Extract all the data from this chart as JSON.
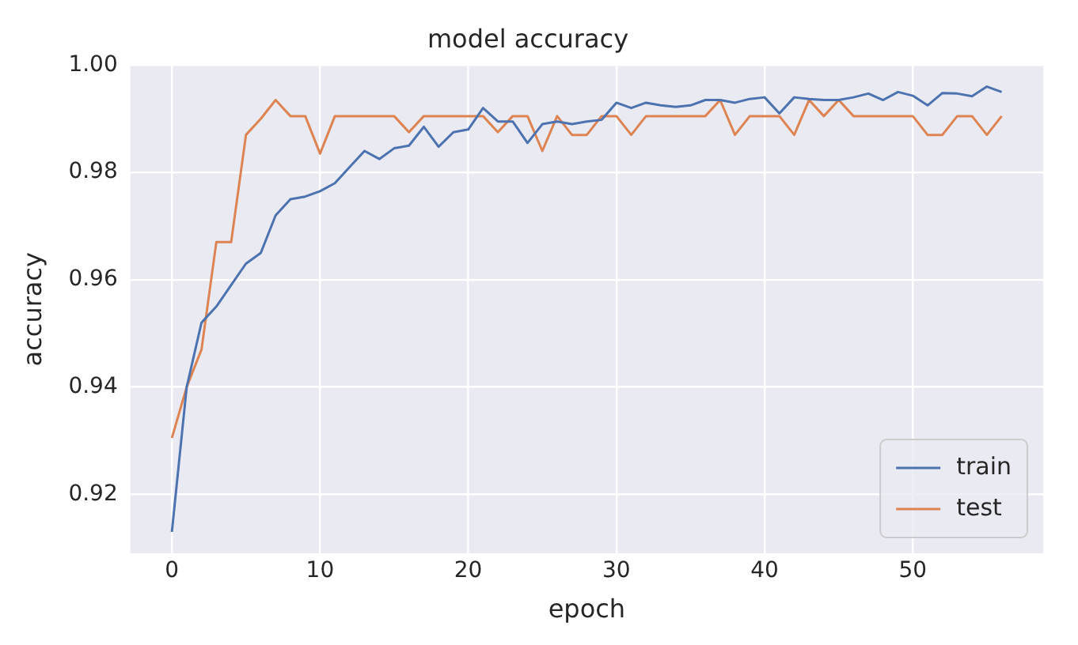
{
  "chart_data": {
    "type": "line",
    "title": "model accuracy",
    "xlabel": "epoch",
    "ylabel": "accuracy",
    "x": [
      0,
      1,
      2,
      3,
      4,
      5,
      6,
      7,
      8,
      9,
      10,
      11,
      12,
      13,
      14,
      15,
      16,
      17,
      18,
      19,
      20,
      21,
      22,
      23,
      24,
      25,
      26,
      27,
      28,
      29,
      30,
      31,
      32,
      33,
      34,
      35,
      36,
      37,
      38,
      39,
      40,
      41,
      42,
      43,
      44,
      45,
      46,
      47,
      48,
      49,
      50,
      51,
      52,
      53,
      54,
      55,
      56
    ],
    "series": [
      {
        "name": "train",
        "color": "#4c72b0",
        "values": [
          0.913,
          0.94,
          0.952,
          0.955,
          0.959,
          0.963,
          0.965,
          0.972,
          0.975,
          0.9755,
          0.9765,
          0.978,
          0.981,
          0.984,
          0.9825,
          0.9845,
          0.985,
          0.9885,
          0.9848,
          0.9875,
          0.988,
          0.992,
          0.9895,
          0.9895,
          0.9855,
          0.989,
          0.9895,
          0.989,
          0.9895,
          0.9898,
          0.993,
          0.992,
          0.993,
          0.9925,
          0.9922,
          0.9925,
          0.9935,
          0.9935,
          0.993,
          0.9937,
          0.994,
          0.991,
          0.994,
          0.9937,
          0.9935,
          0.9935,
          0.994,
          0.9947,
          0.9935,
          0.995,
          0.9943,
          0.9925,
          0.9948,
          0.9947,
          0.9942,
          0.996,
          0.995
        ]
      },
      {
        "name": "test",
        "color": "#dd8452",
        "values": [
          0.9305,
          0.94,
          0.947,
          0.967,
          0.967,
          0.987,
          0.99,
          0.9935,
          0.9905,
          0.9905,
          0.9835,
          0.9905,
          0.9905,
          0.9905,
          0.9905,
          0.9905,
          0.9875,
          0.9905,
          0.9905,
          0.9905,
          0.9905,
          0.9905,
          0.9875,
          0.9905,
          0.9905,
          0.984,
          0.9905,
          0.987,
          0.987,
          0.9905,
          0.9905,
          0.987,
          0.9905,
          0.9905,
          0.9905,
          0.9905,
          0.9905,
          0.9935,
          0.987,
          0.9905,
          0.9905,
          0.9905,
          0.987,
          0.9935,
          0.9905,
          0.9935,
          0.9905,
          0.9905,
          0.9905,
          0.9905,
          0.9905,
          0.987,
          0.987,
          0.9905,
          0.9905,
          0.987,
          0.9905
        ]
      }
    ],
    "xlim": [
      -2.8,
      58.8
    ],
    "xticks": [
      0,
      10,
      20,
      30,
      40,
      50
    ],
    "ylim": [
      0.909,
      1.0
    ],
    "yticks": [
      {
        "value": 0.92,
        "label": "0.92"
      },
      {
        "value": 0.94,
        "label": "0.94"
      },
      {
        "value": 0.96,
        "label": "0.96"
      },
      {
        "value": 0.98,
        "label": "0.98"
      },
      {
        "value": 1.0,
        "label": "1.00"
      }
    ],
    "grid": true,
    "legend": "bottom right"
  }
}
